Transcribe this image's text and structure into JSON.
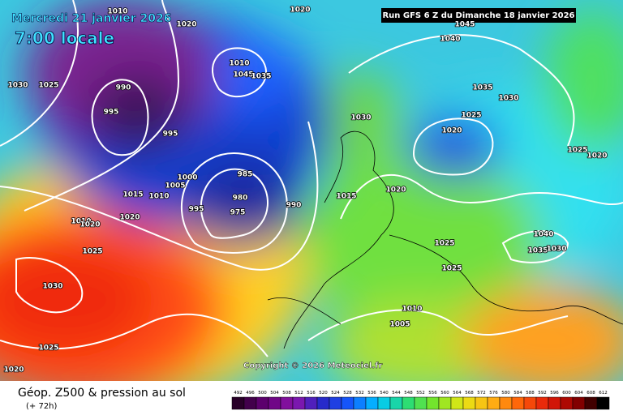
{
  "header": {
    "date": "Mercredi 21 janvier 2026",
    "time": "7:00 locale",
    "run": "Run GFS 6 Z du Dimanche 18 janvier 2026"
  },
  "copyright": "Copyright © 2026 Meteociel.fr",
  "footer": {
    "title": "Géop. Z500 & pression au sol",
    "subtitle": "(+ 72h)"
  },
  "colorbar": {
    "labels": [
      492,
      496,
      500,
      504,
      508,
      512,
      516,
      520,
      524,
      528,
      532,
      536,
      540,
      544,
      548,
      552,
      556,
      560,
      564,
      568,
      572,
      576,
      580,
      584,
      588,
      592,
      596,
      600,
      604,
      608,
      612
    ]
  },
  "isobar_labels": [
    1010,
    1020,
    1020,
    1030,
    1025,
    990,
    995,
    995,
    1010,
    1045,
    1035,
    1030,
    1045,
    1040,
    1035,
    1030,
    1025,
    1020,
    1025,
    1020,
    1000,
    1005,
    985,
    1015,
    1010,
    980,
    995,
    975,
    990,
    1015,
    1020,
    1010,
    1020,
    1020,
    1025,
    1025,
    1040,
    1035,
    1030,
    1025,
    1030,
    1010,
    1005,
    1025,
    1020
  ]
}
